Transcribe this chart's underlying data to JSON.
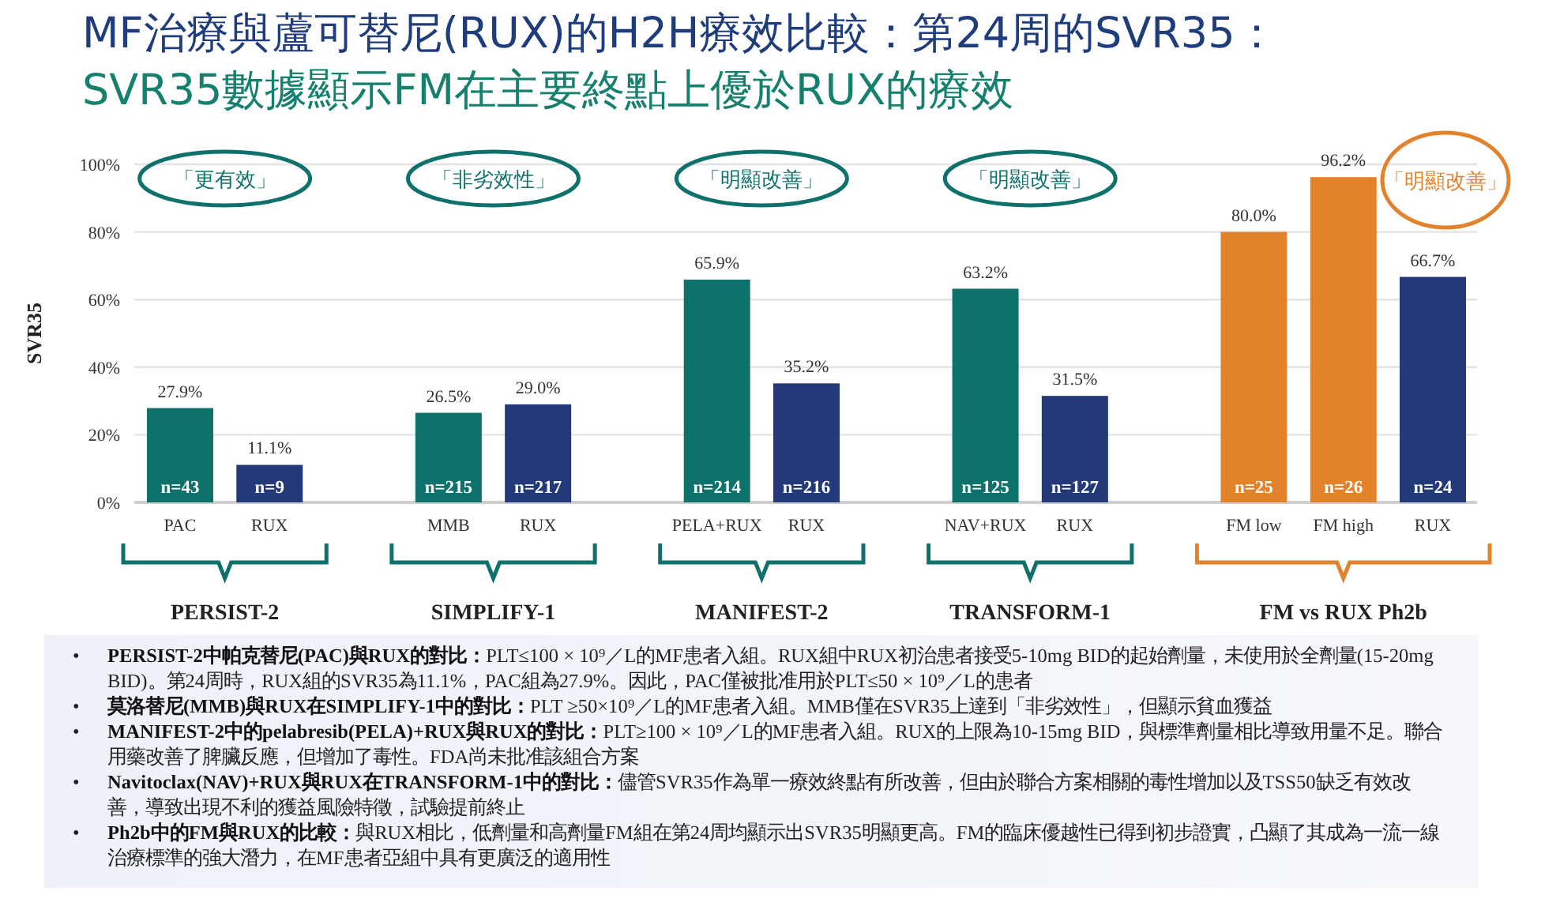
{
  "chart_data": {
    "type": "bar",
    "title": "MF治療與蘆可替尼(RUX)的H2H療效比較：第24周的SVR35：",
    "subtitle": "SVR35數據顯示FM在主要終點上優於RUX的療效",
    "ylabel": "SVR35",
    "categories": [
      "PAC",
      "RUX",
      null,
      "MMB",
      "RUX",
      null,
      "PELA+RUX",
      "RUX",
      null,
      "NAV+RUX",
      "RUX",
      null,
      "FM low",
      "FM high",
      "RUX"
    ],
    "values": [
      27.9,
      11.1,
      null,
      26.5,
      29.0,
      null,
      65.9,
      35.2,
      null,
      63.2,
      31.5,
      null,
      80.0,
      96.2,
      66.7
    ],
    "value_labels": [
      "27.9%",
      "11.1%",
      null,
      "26.5%",
      "29.0%",
      null,
      "65.9%",
      "35.2%",
      null,
      "63.2%",
      "31.5%",
      null,
      "80.0%",
      "96.2%",
      "66.7%"
    ],
    "colors": [
      "#0f716b",
      "#243a78",
      null,
      "#0f716b",
      "#243a78",
      null,
      "#0f716b",
      "#243a78",
      null,
      "#0f716b",
      "#243a78",
      null,
      "#e2822a",
      "#e2822a",
      "#243a78"
    ],
    "ylim": [
      0,
      100
    ],
    "yticks": [
      {
        "value": 0,
        "label": "0%"
      },
      {
        "value": 20,
        "label": "20%"
      },
      {
        "value": 40,
        "label": "40%"
      },
      {
        "value": 60,
        "label": "60%"
      },
      {
        "value": 80,
        "label": "80%"
      },
      {
        "value": 100,
        "label": "100%"
      }
    ],
    "grid": "y",
    "annotations": [
      "「更有效」",
      "n=43",
      "n=9",
      "PERSIST-2",
      "「非劣效性」",
      "n=215",
      "n=217",
      "SIMPLIFY-1",
      "「明顯改善」",
      "n=214",
      "n=216",
      "MANIFEST-2",
      "「明顯改善」",
      "n=125",
      "n=127",
      "TRANSFORM-1",
      "「明顯改善」",
      "n=25",
      "n=26",
      "n=24",
      "FM vs RUX Ph2b",
      "• PERSIST-2中帕克替尼(PAC)與RUX的對比：PLT≤100 × 10⁹／L的MF患者入組。RUX組中RUX初治患者接受5-10mg BID的起始劑量，未使用於全劑量(15-20mg BID)。第24周時，RUX組的SVR35為11.1%，PAC組為27.9%。因此，PAC僅被批准用於PLT≤50 × 10⁹／L的患者",
      "• 莫洛替尼(MMB)與RUX在SIMPLIFY-1中的對比：PLT ≥50×10⁹／L的MF患者入組。MMB僅在SVR35上達到「非劣效性」，但顯示貧血獲益",
      "• MANIFEST-2中的pelabresib(PELA)+RUX與RUX的對比：PLT≥100 × 10⁹／L的MF患者入組。RUX的上限為10-15mg BID，與標準劑量相比導致用量不足。聯合用藥改善了脾臟反應，但增加了毒性。FDA尚未批准該組合方案",
      "• Navitoclax(NAV)+RUX與RUX在TRANSFORM-1中的對比：儘管SVR35作為單一療效終點有所改善，但由於聯合方案相關的毒性增加以及TSS50缺乏有效改善，導致出現不利的獲益風險特徵，試驗提前終止",
      "• Ph2b中的FM與RUX的比較：與RUX相比，低劑量和高劑量FM組在第24周均顯示出SVR35明顯更高。FM的臨床優越性已得到初步證實，凸顯了其成為一流一線治療標準的強大潛力，在MF患者亞組中具有更廣泛的適用性"
    ]
  }
}
